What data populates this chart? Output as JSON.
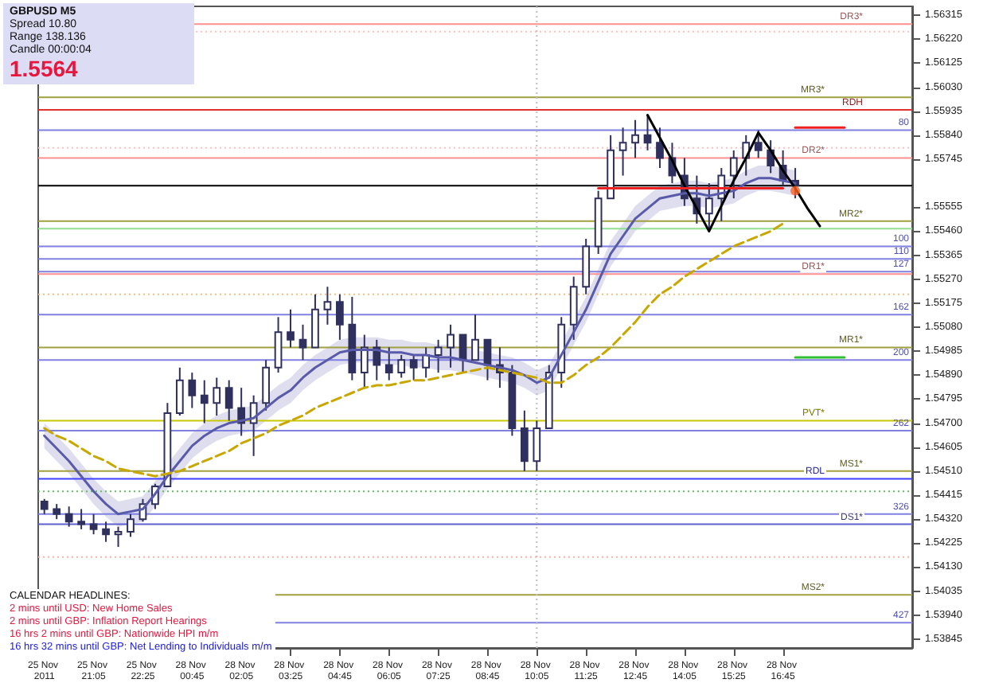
{
  "chart_data": {
    "type": "candlestick",
    "color": "#30305e",
    "marker": "none",
    "annotations": [
      "GBPUSD M5",
      "Spread 10.80",
      "Range 138.136",
      "Candle 00:00:04",
      "1.5564",
      "CALENDAR HEADLINES:",
      "2 mins until USD: New Home Sales",
      "2 mins until GBP: Inflation Report Hearings",
      "16 hrs 2 mins until GBP: Nationwide HPI m/m",
      "16 hrs 32 mins until GBP: Net Lending to Individuals m/m",
      {
        "text": "80",
        "y": 1.5586
      },
      {
        "text": "100",
        "y": 1.554
      },
      {
        "text": "110",
        "y": 1.5535
      },
      {
        "text": "127",
        "y": 1.553
      },
      {
        "text": "162",
        "y": 1.5513
      },
      {
        "text": "200",
        "y": 1.5495
      },
      {
        "text": "262",
        "y": 1.5467
      },
      {
        "text": "326",
        "y": 1.5434
      },
      {
        "text": "427",
        "y": 1.5391
      }
    ],
    "categories": [
      "25 Nov 2011",
      null,
      null,
      null,
      "25 Nov 21:05",
      null,
      null,
      null,
      "25 Nov 22:25",
      null,
      null,
      null,
      "28 Nov 00:45",
      null,
      null,
      null,
      "28 Nov 02:05",
      null,
      null,
      null,
      "28 Nov 03:25",
      null,
      null,
      null,
      "28 Nov 04:45",
      null,
      null,
      null,
      "28 Nov 06:05",
      null,
      null,
      null,
      "28 Nov 07:25",
      null,
      null,
      null,
      "28 Nov 08:45",
      null,
      null,
      null,
      "28 Nov 10:05",
      null,
      null,
      null,
      "28 Nov 11:25",
      null,
      null,
      null,
      "28 Nov 12:45",
      null,
      null,
      null,
      "28 Nov 14:05",
      null,
      null,
      null,
      "28 Nov 15:25",
      null,
      null,
      null,
      "28 Nov 16:45",
      null,
      null,
      null,
      null,
      null,
      null,
      null,
      null,
      null,
      null
    ],
    "ohlc": [
      [
        1.5439,
        1.544,
        1.5434,
        1.5436
      ],
      [
        1.5436,
        1.5438,
        1.5432,
        1.5434
      ],
      [
        1.5434,
        1.5437,
        1.5429,
        1.5431
      ],
      [
        1.5431,
        1.5436,
        1.5428,
        1.543
      ],
      [
        1.543,
        1.5434,
        1.5426,
        1.5428
      ],
      [
        1.5428,
        1.5431,
        1.5423,
        1.5426
      ],
      [
        1.5426,
        1.5429,
        1.5421,
        1.5427
      ],
      [
        1.5427,
        1.5434,
        1.5425,
        1.5432
      ],
      [
        1.5432,
        1.544,
        1.5431,
        1.5438
      ],
      [
        1.5438,
        1.5446,
        1.5436,
        1.5445
      ],
      [
        1.5445,
        1.5478,
        1.5445,
        1.5474
      ],
      [
        1.5474,
        1.5492,
        1.5473,
        1.5487
      ],
      [
        1.5487,
        1.549,
        1.5476,
        1.5481
      ],
      [
        1.5481,
        1.5487,
        1.547,
        1.5478
      ],
      [
        1.5478,
        1.5488,
        1.5473,
        1.5484
      ],
      [
        1.5484,
        1.5487,
        1.5471,
        1.5476
      ],
      [
        1.5476,
        1.5484,
        1.5465,
        1.547
      ],
      [
        1.547,
        1.5481,
        1.5457,
        1.5478
      ],
      [
        1.5478,
        1.5495,
        1.5475,
        1.5492
      ],
      [
        1.5492,
        1.5512,
        1.549,
        1.5506
      ],
      [
        1.5506,
        1.5515,
        1.55,
        1.5503
      ],
      [
        1.5503,
        1.5509,
        1.5495,
        1.55
      ],
      [
        1.55,
        1.5521,
        1.55,
        1.5515
      ],
      [
        1.5515,
        1.5524,
        1.5509,
        1.5518
      ],
      [
        1.5518,
        1.5521,
        1.5503,
        1.5509
      ],
      [
        1.5509,
        1.552,
        1.5487,
        1.549
      ],
      [
        1.549,
        1.5505,
        1.5484,
        1.55
      ],
      [
        1.55,
        1.5503,
        1.5487,
        1.5493
      ],
      [
        1.5493,
        1.55,
        1.5487,
        1.549
      ],
      [
        1.549,
        1.5497,
        1.5488,
        1.5495
      ],
      [
        1.5495,
        1.5497,
        1.5487,
        1.5492
      ],
      [
        1.5492,
        1.55,
        1.5488,
        1.5497
      ],
      [
        1.5497,
        1.5503,
        1.549,
        1.55
      ],
      [
        1.55,
        1.5509,
        1.5492,
        1.5505
      ],
      [
        1.5505,
        1.5505,
        1.549,
        1.5495
      ],
      [
        1.5495,
        1.5513,
        1.5495,
        1.5503
      ],
      [
        1.5503,
        1.5503,
        1.5487,
        1.5493
      ],
      [
        1.5493,
        1.55,
        1.5484,
        1.549
      ],
      [
        1.549,
        1.5493,
        1.5465,
        1.5468
      ],
      [
        1.5468,
        1.5475,
        1.5451,
        1.5455
      ],
      [
        1.5455,
        1.5471,
        1.5451,
        1.5468
      ],
      [
        1.5468,
        1.5493,
        1.5468,
        1.549
      ],
      [
        1.549,
        1.5512,
        1.5484,
        1.5509
      ],
      [
        1.5509,
        1.5528,
        1.5503,
        1.5524
      ],
      [
        1.5524,
        1.5543,
        1.5521,
        1.554
      ],
      [
        1.554,
        1.5562,
        1.5537,
        1.5559
      ],
      [
        1.5559,
        1.5584,
        1.5559,
        1.5578
      ],
      [
        1.5578,
        1.5587,
        1.5568,
        1.5581
      ],
      [
        1.5581,
        1.559,
        1.5575,
        1.5584
      ],
      [
        1.5584,
        1.5592,
        1.5578,
        1.5581
      ],
      [
        1.5581,
        1.5587,
        1.5571,
        1.5575
      ],
      [
        1.5575,
        1.5581,
        1.5565,
        1.5568
      ],
      [
        1.5568,
        1.5575,
        1.5556,
        1.5559
      ],
      [
        1.5559,
        1.5568,
        1.5549,
        1.5553
      ],
      [
        1.5553,
        1.5565,
        1.5546,
        1.5559
      ],
      [
        1.5559,
        1.5571,
        1.555,
        1.5568
      ],
      [
        1.5568,
        1.5578,
        1.5559,
        1.5575
      ],
      [
        1.5575,
        1.5584,
        1.5568,
        1.5581
      ],
      [
        1.5581,
        1.5586,
        1.5575,
        1.5578
      ],
      [
        1.5578,
        1.5582,
        1.5569,
        1.5572
      ],
      [
        1.5572,
        1.5578,
        1.5564,
        1.5566
      ],
      [
        1.5566,
        1.5571,
        1.5559,
        1.5564
      ],
      null,
      null,
      null,
      null,
      null,
      null,
      null,
      null,
      null
    ],
    "series": [
      {
        "type": "line",
        "color": "#5a5aaa",
        "values": [
          1.5465,
          1.546,
          1.5455,
          1.5449,
          1.5443,
          1.5438,
          1.5434,
          1.5435,
          1.5436,
          1.5442,
          1.5449,
          1.5455,
          1.5461,
          1.5465,
          1.5468,
          1.547,
          1.5471,
          1.5472,
          1.5476,
          1.548,
          1.5483,
          1.5488,
          1.5492,
          1.5495,
          1.5498,
          1.5499,
          1.5499,
          1.5499,
          1.5498,
          1.5498,
          1.5497,
          1.5497,
          1.5496,
          1.5496,
          1.5495,
          1.5494,
          1.5493,
          1.5492,
          1.5491,
          1.5489,
          1.5486,
          1.5488,
          1.5497,
          1.5506,
          1.5515,
          1.5526,
          1.5537,
          1.5544,
          1.5551,
          1.5555,
          1.5559,
          1.556,
          1.5561,
          1.5561,
          1.556,
          1.5561,
          1.5562,
          1.5565,
          1.5567,
          1.5567,
          1.5566,
          1.5565,
          null,
          null,
          null,
          null,
          null,
          null,
          null,
          null,
          null
        ],
        "lower": [
          1.546,
          1.5455,
          1.545,
          1.5444,
          1.5438,
          1.5433,
          1.5429,
          1.543,
          1.5431,
          1.5437,
          1.5444,
          1.545,
          1.5456,
          1.546,
          1.5463,
          1.5465,
          1.5466,
          1.5467,
          1.5471,
          1.5475,
          1.5478,
          1.5483,
          1.5487,
          1.549,
          1.5493,
          1.5494,
          1.5494,
          1.5494,
          1.5493,
          1.5493,
          1.5492,
          1.5492,
          1.5491,
          1.5491,
          1.549,
          1.5489,
          1.5488,
          1.5487,
          1.5486,
          1.5484,
          1.5481,
          1.5483,
          1.5492,
          1.5501,
          1.551,
          1.5521,
          1.5532,
          1.5539,
          1.5546,
          1.555,
          1.5554,
          1.5555,
          1.5556,
          1.5556,
          1.5555,
          1.5556,
          1.5557,
          1.556,
          1.5562,
          1.5562,
          1.5561,
          1.556,
          null,
          null,
          null,
          null,
          null,
          null,
          null,
          null,
          null
        ],
        "upper": [
          1.547,
          1.5465,
          1.546,
          1.5454,
          1.5448,
          1.5443,
          1.5439,
          1.544,
          1.5441,
          1.5447,
          1.5454,
          1.546,
          1.5466,
          1.547,
          1.5473,
          1.5475,
          1.5476,
          1.5477,
          1.5481,
          1.5485,
          1.5488,
          1.5493,
          1.5497,
          1.55,
          1.5503,
          1.5504,
          1.5504,
          1.5504,
          1.5503,
          1.5503,
          1.5502,
          1.5502,
          1.5501,
          1.5501,
          1.55,
          1.5499,
          1.5498,
          1.5497,
          1.5496,
          1.5494,
          1.5491,
          1.5493,
          1.5502,
          1.5511,
          1.552,
          1.5531,
          1.5542,
          1.5549,
          1.5556,
          1.556,
          1.5564,
          1.5565,
          1.5566,
          1.5566,
          1.5565,
          1.5566,
          1.5567,
          1.557,
          1.5572,
          1.5572,
          1.5571,
          1.557,
          null,
          null,
          null,
          null,
          null,
          null,
          null,
          null,
          null
        ]
      },
      {
        "type": "line",
        "color": "#c8a800",
        "line_style": "dashed",
        "values": [
          1.5468,
          1.5465,
          1.5463,
          1.546,
          1.5457,
          1.5455,
          1.5452,
          1.5451,
          1.545,
          1.5449,
          1.545,
          1.5451,
          1.5453,
          1.5455,
          1.5457,
          1.5459,
          1.5462,
          1.5464,
          1.5466,
          1.5469,
          1.5471,
          1.5473,
          1.5476,
          1.5478,
          1.548,
          1.5482,
          1.5484,
          1.5485,
          1.5485,
          1.5486,
          1.5487,
          1.5487,
          1.5488,
          1.5489,
          1.549,
          1.5491,
          1.5492,
          1.5491,
          1.549,
          1.5489,
          1.5488,
          1.5486,
          1.5486,
          1.5489,
          1.5493,
          1.5496,
          1.55,
          1.5505,
          1.551,
          1.5516,
          1.5521,
          1.5524,
          1.5528,
          1.5531,
          1.5534,
          1.5537,
          1.554,
          1.5542,
          1.5544,
          1.5546,
          1.5549,
          null,
          null,
          null,
          null,
          null,
          null,
          null,
          null,
          null,
          null
        ]
      },
      {
        "type": "line",
        "color": "#000000",
        "values": [
          null,
          null,
          null,
          null,
          null,
          null,
          null,
          null,
          null,
          null,
          null,
          null,
          null,
          null,
          null,
          null,
          null,
          null,
          null,
          null,
          null,
          null,
          null,
          null,
          null,
          null,
          null,
          null,
          null,
          null,
          null,
          null,
          null,
          null,
          null,
          null,
          null,
          null,
          null,
          null,
          null,
          null,
          null,
          null,
          null,
          null,
          null,
          null,
          null,
          1.5592,
          1.5583,
          1.5574,
          1.5564,
          1.5555,
          1.5546,
          1.5556,
          1.5566,
          1.5575,
          1.5585,
          1.5578,
          1.557,
          1.5563,
          1.5555,
          1.5548,
          null,
          null,
          null,
          null,
          null,
          null,
          null
        ]
      },
      {
        "type": "line",
        "color": "#ee2020",
        "values": [
          null,
          null,
          null,
          null,
          null,
          null,
          null,
          null,
          null,
          null,
          null,
          null,
          null,
          null,
          null,
          null,
          null,
          null,
          null,
          null,
          null,
          null,
          null,
          null,
          null,
          null,
          null,
          null,
          null,
          null,
          null,
          null,
          null,
          null,
          null,
          null,
          null,
          null,
          null,
          null,
          null,
          null,
          null,
          null,
          null,
          1.5563,
          1.5563,
          1.5563,
          1.5563,
          1.5563,
          1.5563,
          1.5563,
          1.5563,
          1.5563,
          1.5563,
          1.5563,
          1.5563,
          1.5563,
          1.5563,
          1.5563,
          1.5563,
          null,
          null,
          null,
          null,
          null,
          null,
          null,
          null,
          null,
          null
        ]
      },
      {
        "type": "line",
        "color": "#ee2020",
        "values": [
          null,
          null,
          null,
          null,
          null,
          null,
          null,
          null,
          null,
          null,
          null,
          null,
          null,
          null,
          null,
          null,
          null,
          null,
          null,
          null,
          null,
          null,
          null,
          null,
          null,
          null,
          null,
          null,
          null,
          null,
          null,
          null,
          null,
          null,
          null,
          null,
          null,
          null,
          null,
          null,
          null,
          null,
          null,
          null,
          null,
          null,
          null,
          null,
          null,
          null,
          null,
          null,
          null,
          null,
          null,
          null,
          null,
          null,
          null,
          null,
          null,
          1.5587,
          1.5587,
          1.5587,
          1.5587,
          1.5587,
          null,
          null,
          null,
          null,
          null
        ]
      },
      {
        "type": "line",
        "color": "#30c030",
        "values": [
          null,
          null,
          null,
          null,
          null,
          null,
          null,
          null,
          null,
          null,
          null,
          null,
          null,
          null,
          null,
          null,
          null,
          null,
          null,
          null,
          null,
          null,
          null,
          null,
          null,
          null,
          null,
          null,
          null,
          null,
          null,
          null,
          null,
          null,
          null,
          null,
          null,
          null,
          null,
          null,
          null,
          null,
          null,
          null,
          null,
          null,
          null,
          null,
          null,
          null,
          null,
          null,
          null,
          null,
          null,
          null,
          null,
          null,
          null,
          null,
          null,
          1.5496,
          1.5496,
          1.5496,
          1.5496,
          1.5496,
          null,
          null,
          null,
          null,
          null
        ]
      },
      {
        "type": "scatter",
        "color": "#ff6020",
        "marker": "circle",
        "values": [
          null,
          null,
          null,
          null,
          null,
          null,
          null,
          null,
          null,
          null,
          null,
          null,
          null,
          null,
          null,
          null,
          null,
          null,
          null,
          null,
          null,
          null,
          null,
          null,
          null,
          null,
          null,
          null,
          null,
          null,
          null,
          null,
          null,
          null,
          null,
          null,
          null,
          null,
          null,
          null,
          null,
          null,
          null,
          null,
          null,
          null,
          null,
          null,
          null,
          null,
          null,
          null,
          null,
          null,
          null,
          null,
          null,
          null,
          null,
          null,
          null,
          1.5562,
          null,
          null,
          null,
          null,
          null,
          null,
          null,
          null,
          null
        ]
      }
    ],
    "ref_lines": [
      {
        "axis": "y",
        "value": 1.5628,
        "label": "DR3*",
        "color": "#ff9090"
      },
      {
        "axis": "y",
        "value": 1.5625,
        "color": "#ffc0c0",
        "line_style": "dotted"
      },
      {
        "axis": "y",
        "value": 1.5599,
        "label": "MR3*",
        "color": "#a0a040"
      },
      {
        "axis": "y",
        "value": 1.5594,
        "label": "RDH",
        "color": "#e03030"
      },
      {
        "axis": "y",
        "value": 1.5586,
        "color": "#8080e0"
      },
      {
        "axis": "y",
        "value": 1.5579,
        "color": "#ffc0c0",
        "line_style": "dotted"
      },
      {
        "axis": "y",
        "value": 1.5575,
        "label": "DR2*",
        "color": "#ff9090"
      },
      {
        "axis": "y",
        "value": 1.5564,
        "color": "#000000"
      },
      {
        "axis": "y",
        "value": 1.555,
        "label": "MR2*",
        "color": "#a0a040"
      },
      {
        "axis": "y",
        "value": 1.5547,
        "color": "#90e090"
      },
      {
        "axis": "y",
        "value": 1.554,
        "color": "#8080e0"
      },
      {
        "axis": "y",
        "value": 1.5535,
        "color": "#8080e0"
      },
      {
        "axis": "y",
        "value": 1.553,
        "color": "#8080e0"
      },
      {
        "axis": "y",
        "value": 1.5529,
        "label": "DR1*",
        "color": "#ff9090"
      },
      {
        "axis": "y",
        "value": 1.5521,
        "color": "#f0c080",
        "line_style": "dotted"
      },
      {
        "axis": "y",
        "value": 1.5513,
        "color": "#8080e0"
      },
      {
        "axis": "y",
        "value": 1.55,
        "label": "MR1*",
        "color": "#a0a040"
      },
      {
        "axis": "y",
        "value": 1.5495,
        "color": "#8080e0"
      },
      {
        "axis": "y",
        "value": 1.5471,
        "label": "PVT*",
        "color": "#c8c800"
      },
      {
        "axis": "y",
        "value": 1.5467,
        "color": "#8080e0"
      },
      {
        "axis": "y",
        "value": 1.5451,
        "label": "MS1*",
        "color": "#a0a040"
      },
      {
        "axis": "y",
        "value": 1.5448,
        "label": "RDL",
        "color": "#4040ff"
      },
      {
        "axis": "y",
        "value": 1.5443,
        "color": "#60c060",
        "line_style": "dotted"
      },
      {
        "axis": "y",
        "value": 1.5434,
        "color": "#8080e0"
      },
      {
        "axis": "y",
        "value": 1.543,
        "label": "DS1*",
        "color": "#6060d0"
      },
      {
        "axis": "y",
        "value": 1.5417,
        "color": "#ffb0a0",
        "line_style": "dotted"
      },
      {
        "axis": "y",
        "value": 1.5402,
        "label": "MS2*",
        "color": "#a0a040"
      },
      {
        "axis": "y",
        "value": 1.5391,
        "color": "#8080e0"
      },
      {
        "axis": "x",
        "value": "28 Nov 10:05",
        "color": "#c0c0c0",
        "line_style": "dotted"
      }
    ],
    "ylim": [
      1.5381,
      1.5635
    ],
    "yticks": [
      1.56315,
      {
        "value": 1.5622,
        "label": "1.56220"
      },
      1.56125,
      {
        "value": 1.5603,
        "label": "1.56030"
      },
      1.55935,
      {
        "value": 1.5584,
        "label": "1.55840"
      },
      1.55745,
      1.55555,
      {
        "value": 1.5546,
        "label": "1.55460"
      },
      1.55365,
      {
        "value": 1.5527,
        "label": "1.55270"
      },
      1.55175,
      {
        "value": 1.5508,
        "label": "1.55080"
      },
      1.54985,
      {
        "value": 1.5489,
        "label": "1.54890"
      },
      1.54795,
      {
        "value": 1.547,
        "label": "1.54700"
      },
      1.54605,
      {
        "value": 1.5451,
        "label": "1.54510"
      },
      1.54415,
      {
        "value": 1.5432,
        "label": "1.54320"
      },
      1.54225,
      {
        "value": 1.5413,
        "label": "1.54130"
      },
      1.54035,
      {
        "value": 1.5394,
        "label": "1.53940"
      },
      1.53845
    ]
  }
}
